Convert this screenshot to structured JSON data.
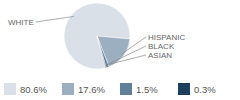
{
  "chart_data": {
    "type": "pie",
    "categories": [
      "WHITE",
      "HISPANIC",
      "BLACK",
      "ASIAN"
    ],
    "values": [
      80.6,
      17.6,
      1.5,
      0.3
    ],
    "value_labels": [
      "80.6%",
      "17.6%",
      "1.5%",
      "0.3%"
    ],
    "colors": [
      "#d9e0e8",
      "#9cafc1",
      "#5f7f9a",
      "#1d3f60"
    ],
    "legend": "bottom"
  }
}
